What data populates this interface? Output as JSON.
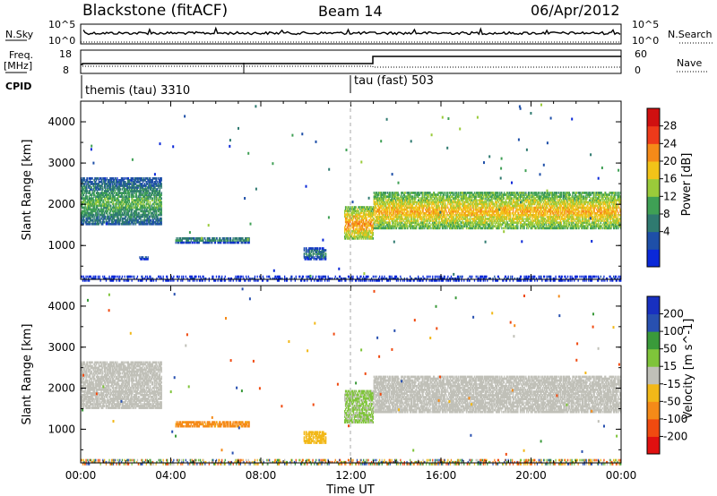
{
  "header": {
    "radar": "Blackstone (fitACF)",
    "beam": "Beam 14",
    "date": "06/Apr/2012"
  },
  "noise_panel": {
    "left_label": "N.Sky",
    "right_label": "N.Search",
    "left_ticks": [
      "10^5",
      "10^0"
    ],
    "right_ticks": [
      "10^5",
      "10^0"
    ]
  },
  "freq_panel": {
    "left_label": "Freq.",
    "left_unit": "[MHz]",
    "left_ticks": [
      "18",
      "8"
    ],
    "right_label": "Nave",
    "right_ticks": [
      "60",
      "0"
    ]
  },
  "cpid": {
    "label": "CPID",
    "modes": [
      {
        "name": "themis (tau) 3310",
        "start_hour": 0
      },
      {
        "name": "tau (fast) 503",
        "start_hour": 12
      }
    ]
  },
  "x_axis": {
    "label": "Time UT",
    "ticks": [
      "00:00",
      "04:00",
      "08:00",
      "12:00",
      "16:00",
      "20:00",
      "00:00"
    ],
    "tick_hours": [
      0,
      4,
      8,
      12,
      16,
      20,
      24
    ]
  },
  "power_panel": {
    "ylabel": "Slant Range [km]",
    "yticks": [
      "4000",
      "3000",
      "2000",
      "1000"
    ],
    "colorbar_title": "Power [dB]",
    "colorbar_ticks": [
      "28",
      "24",
      "20",
      "16",
      "12",
      "8",
      "4"
    ]
  },
  "velocity_panel": {
    "ylabel": "Slant Range [km]",
    "yticks": [
      "4000",
      "3000",
      "2000",
      "1000"
    ],
    "colorbar_title": "Velocity [m s^-1]",
    "colorbar_ticks": [
      "200",
      "100",
      "50",
      "15",
      "-15",
      "-50",
      "-100",
      "-200"
    ]
  },
  "chart_data": [
    {
      "type": "heatmap",
      "title": "Power [dB]",
      "xlabel": "Time UT",
      "ylabel": "Slant Range [km]",
      "xlim_hours": [
        0,
        24
      ],
      "ylim_km": [
        180,
        4500
      ],
      "color_scale": {
        "min": 0,
        "max": 32,
        "step": 4,
        "colors": [
          "#0a28d8",
          "#1e4fa8",
          "#2f7a70",
          "#3fa055",
          "#9acb3a",
          "#f2c318",
          "#f58a18",
          "#ee3a1a",
          "#d01010"
        ]
      },
      "echo_regions": [
        {
          "t_start": 0.0,
          "t_end": 3.6,
          "range_start_km": 1550,
          "range_end_km": 2700,
          "power_db": 16
        },
        {
          "t_start": 4.2,
          "t_end": 7.5,
          "range_start_km": 1100,
          "range_end_km": 1250,
          "power_db": 14
        },
        {
          "t_start": 2.6,
          "t_end": 3.0,
          "range_start_km": 700,
          "range_end_km": 780,
          "power_db": 8
        },
        {
          "t_start": 9.9,
          "t_end": 10.9,
          "range_start_km": 700,
          "range_end_km": 1000,
          "power_db": 12
        },
        {
          "t_start": 11.7,
          "t_end": 13.0,
          "range_start_km": 1200,
          "range_end_km": 2000,
          "power_db": 26
        },
        {
          "t_start": 13.0,
          "t_end": 24.0,
          "range_start_km": 1450,
          "range_end_km": 2350,
          "power_db": 24
        },
        {
          "t_start": 0.0,
          "t_end": 24.0,
          "range_start_km": 180,
          "range_end_km": 320,
          "power_db": 6
        }
      ]
    },
    {
      "type": "heatmap",
      "title": "Velocity [m s^-1]",
      "xlabel": "Time UT",
      "ylabel": "Slant Range [km]",
      "xlim_hours": [
        0,
        24
      ],
      "ylim_km": [
        180,
        4500
      ],
      "color_scale": {
        "boundaries": [
          -200,
          -100,
          -50,
          -15,
          15,
          50,
          100,
          200
        ],
        "colors": [
          "#e01010",
          "#f04a10",
          "#f58a18",
          "#f2b818",
          "#c0c0b8",
          "#7fc43a",
          "#3a9a3a",
          "#2850b0",
          "#1830c0"
        ]
      },
      "echo_regions": [
        {
          "t_start": 0.0,
          "t_end": 3.6,
          "range_start_km": 1550,
          "range_end_km": 2700,
          "velocity": 0
        },
        {
          "t_start": 4.2,
          "t_end": 7.5,
          "range_start_km": 1100,
          "range_end_km": 1250,
          "velocity": -60
        },
        {
          "t_start": 9.9,
          "t_end": 10.9,
          "range_start_km": 700,
          "range_end_km": 1000,
          "velocity": -30
        },
        {
          "t_start": 11.7,
          "t_end": 13.0,
          "range_start_km": 1200,
          "range_end_km": 2000,
          "velocity": 20
        },
        {
          "t_start": 13.0,
          "t_end": 24.0,
          "range_start_km": 1450,
          "range_end_km": 2350,
          "velocity": 0
        }
      ]
    }
  ]
}
